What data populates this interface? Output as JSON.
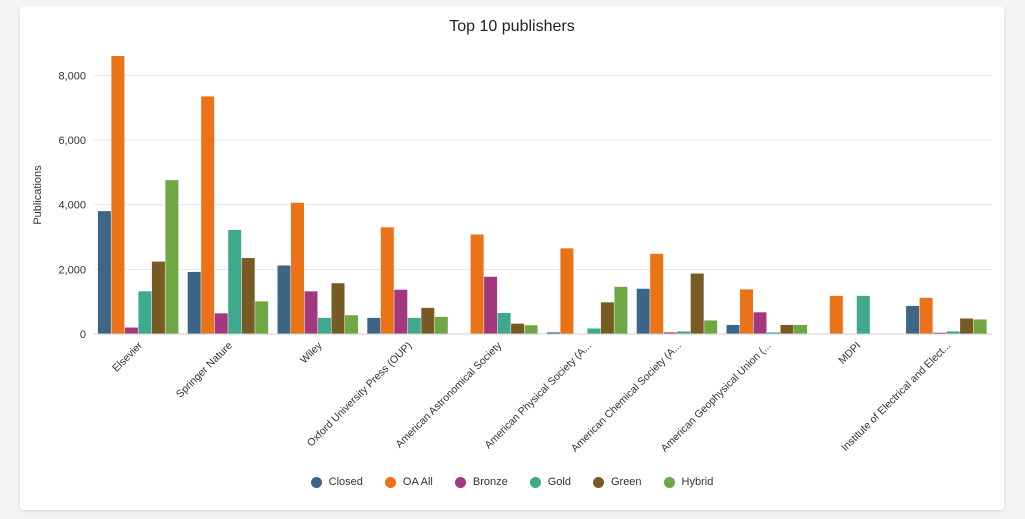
{
  "chart_data": {
    "type": "bar",
    "title": "Top 10 publishers",
    "xlabel": "",
    "ylabel": "Publications",
    "ylim": [
      0,
      8600
    ],
    "yticks": [
      0,
      2000,
      4000,
      6000,
      8000
    ],
    "ytick_labels": [
      "0",
      "2,000",
      "4,000",
      "6,000",
      "8,000"
    ],
    "grid": true,
    "legend_position": "bottom",
    "categories": [
      "Elsevier",
      "Springer Nature",
      "Wiley",
      "Oxford University Press (OUP)",
      "American Astronomical Society",
      "American Physical Society (A...",
      "American Chemical Society (A...",
      "American Geophysical Union (...",
      "MDPI",
      "Institute of Electrical and Elect..."
    ],
    "series": [
      {
        "name": "Closed",
        "color": "#3d6586",
        "values": [
          3800,
          1920,
          2120,
          500,
          0,
          50,
          1400,
          280,
          0,
          870
        ]
      },
      {
        "name": "OA All",
        "color": "#ea7317",
        "values": [
          8600,
          7350,
          4060,
          3300,
          3080,
          2650,
          2480,
          1380,
          1180,
          1120
        ]
      },
      {
        "name": "Bronze",
        "color": "#a3387f",
        "values": [
          200,
          640,
          1320,
          1370,
          1770,
          0,
          50,
          670,
          0,
          40
        ]
      },
      {
        "name": "Gold",
        "color": "#3fa98d",
        "values": [
          1320,
          3220,
          500,
          500,
          650,
          170,
          80,
          50,
          1180,
          80
        ]
      },
      {
        "name": "Green",
        "color": "#775a24",
        "values": [
          2240,
          2350,
          1570,
          810,
          320,
          980,
          1870,
          280,
          0,
          480
        ]
      },
      {
        "name": "Hybrid",
        "color": "#6ea743",
        "values": [
          4760,
          1010,
          580,
          530,
          270,
          1460,
          420,
          280,
          0,
          450
        ]
      }
    ]
  }
}
